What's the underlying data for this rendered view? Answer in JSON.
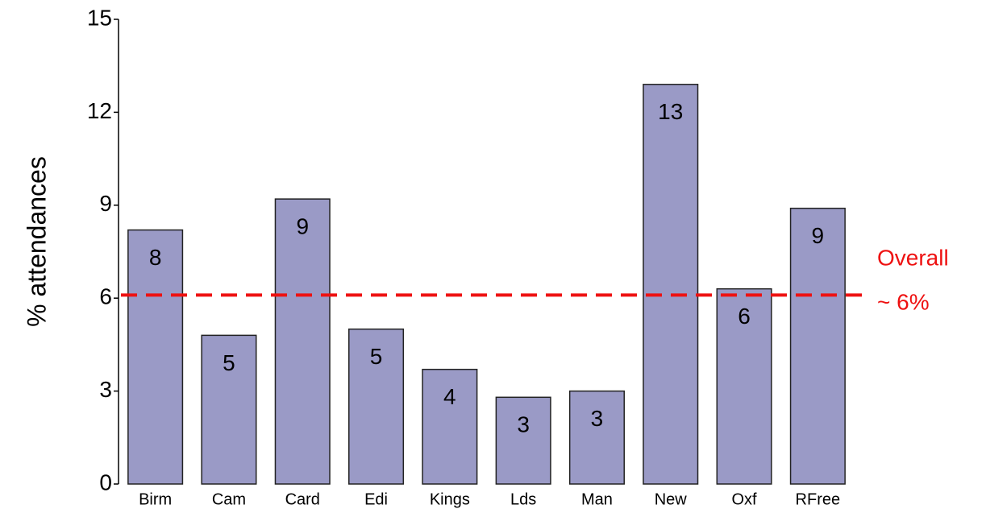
{
  "chart_data": {
    "type": "bar",
    "y_label": "% attendances",
    "categories": [
      "Birm",
      "Cam",
      "Card",
      "Edi",
      "Kings",
      "Lds",
      "Man",
      "New",
      "Oxf",
      "RFree"
    ],
    "values": [
      8.2,
      4.8,
      9.2,
      5.0,
      3.7,
      2.8,
      3.0,
      12.9,
      6.3,
      8.9
    ],
    "value_labels": [
      "8",
      "5",
      "9",
      "5",
      "4",
      "3",
      "3",
      "13",
      "6",
      "9"
    ],
    "color": "#9a9ac6",
    "ylim": [
      0,
      15
    ],
    "yticks": [
      0,
      3,
      6,
      9,
      12,
      15
    ],
    "reference_line": {
      "value": 6.1,
      "color": "#ee1111",
      "labels": [
        "Overall",
        "~ 6%"
      ]
    }
  }
}
